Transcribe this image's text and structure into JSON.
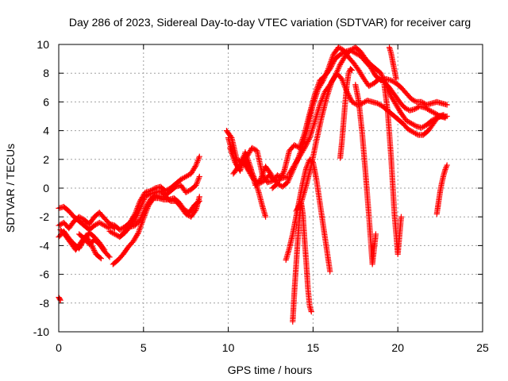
{
  "chart_data": {
    "type": "scatter",
    "title": "Day 286 of 2023, Sidereal Day-to-day VTEC variation (SDTVAR) for receiver carg",
    "xlabel": "GPS time / hours",
    "ylabel": "SDTVAR / TECUs",
    "xlim": [
      0,
      25
    ],
    "ylim": [
      -10,
      10
    ],
    "xticks": [
      0,
      5,
      10,
      15,
      20,
      25
    ],
    "yticks": [
      -10,
      -8,
      -6,
      -4,
      -2,
      0,
      2,
      4,
      6,
      8,
      10
    ],
    "grid": true,
    "marker": "+",
    "color": "#ff0000",
    "series": [
      {
        "name": "outlier",
        "x": [
          0.0,
          0.1
        ],
        "y": [
          -7.6,
          -7.8
        ]
      },
      {
        "name": "s1",
        "x": [
          0.0,
          0.3,
          0.6,
          0.9,
          1.2,
          1.5,
          1.8,
          2.1,
          2.4,
          2.7,
          3.0
        ],
        "y": [
          -1.4,
          -1.3,
          -1.6,
          -2.0,
          -2.3,
          -2.6,
          -2.9,
          -2.6,
          -2.4,
          -2.6,
          -2.8
        ]
      },
      {
        "name": "s2",
        "x": [
          0.0,
          0.3,
          0.6,
          0.9,
          1.2,
          1.5,
          1.8,
          2.1,
          2.4,
          2.7,
          3.0,
          3.3
        ],
        "y": [
          -2.6,
          -2.4,
          -2.8,
          -2.3,
          -2.0,
          -2.2,
          -2.5,
          -2.0,
          -1.7,
          -2.1,
          -2.5,
          -2.8
        ]
      },
      {
        "name": "s3",
        "x": [
          0.0,
          0.3,
          0.6,
          0.9,
          1.2,
          1.5,
          1.8,
          2.1,
          2.4,
          2.7
        ],
        "y": [
          -3.4,
          -3.0,
          -3.5,
          -3.9,
          -4.2,
          -3.6,
          -3.1,
          -3.4,
          -3.8,
          -4.3
        ]
      },
      {
        "name": "s4",
        "x": [
          0.1,
          0.4,
          0.7,
          1.0,
          1.3,
          1.6,
          1.9,
          2.2,
          2.5
        ],
        "y": [
          -2.9,
          -3.3,
          -3.8,
          -4.3,
          -3.8,
          -3.3,
          -3.9,
          -4.6,
          -4.9
        ]
      },
      {
        "name": "s5",
        "x": [
          1.2,
          1.5,
          1.8,
          2.1,
          2.4,
          2.7,
          3.0
        ],
        "y": [
          -3.2,
          -3.5,
          -3.9,
          -3.6,
          -3.9,
          -4.4,
          -4.8
        ]
      },
      {
        "name": "s6",
        "x": [
          3.0,
          3.3,
          3.6,
          3.9,
          4.2,
          4.5,
          4.8,
          5.1,
          5.4,
          5.7,
          6.0,
          6.3,
          6.6,
          6.9,
          7.2,
          7.5,
          7.8,
          8.1,
          8.3
        ],
        "y": [
          -2.5,
          -2.6,
          -2.9,
          -2.7,
          -2.4,
          -1.8,
          -0.9,
          -0.3,
          -0.2,
          0.0,
          0.1,
          -0.2,
          0.0,
          0.3,
          0.6,
          0.8,
          1.0,
          1.6,
          2.2
        ]
      },
      {
        "name": "s7",
        "x": [
          3.0,
          3.3,
          3.6,
          3.9,
          4.2,
          4.5,
          4.8,
          5.1,
          5.4,
          5.7,
          6.0,
          6.3,
          6.6,
          6.9,
          7.2,
          7.5,
          7.8,
          8.1,
          8.3
        ],
        "y": [
          -3.0,
          -3.2,
          -3.4,
          -3.0,
          -2.6,
          -2.2,
          -1.4,
          -0.6,
          -0.4,
          -0.3,
          -0.2,
          -0.5,
          -0.2,
          0.1,
          0.2,
          -0.3,
          -0.1,
          0.2,
          0.8
        ]
      },
      {
        "name": "s8",
        "x": [
          3.2,
          3.5,
          3.8,
          4.1,
          4.4,
          4.7,
          5.0,
          5.3,
          5.6,
          5.9,
          6.2,
          6.5,
          6.8,
          7.1,
          7.4,
          7.7,
          8.0,
          8.3
        ],
        "y": [
          -5.3,
          -5.0,
          -4.6,
          -4.1,
          -3.7,
          -3.1,
          -2.1,
          -1.2,
          -0.7,
          -0.7,
          -0.8,
          -0.8,
          -0.7,
          -1.0,
          -1.5,
          -1.7,
          -1.2,
          -0.9
        ]
      },
      {
        "name": "s9",
        "x": [
          3.6,
          3.9,
          4.2,
          4.5,
          4.8,
          5.1,
          5.4,
          5.7,
          6.0,
          6.3,
          6.6,
          6.9,
          7.2,
          7.5,
          7.8,
          8.1,
          8.3
        ],
        "y": [
          -3.4,
          -3.1,
          -2.7,
          -2.6,
          -2.2,
          -1.4,
          -0.8,
          -0.5,
          -0.6,
          -0.6,
          -0.9,
          -0.9,
          -1.3,
          -1.8,
          -2.0,
          -1.5,
          -0.6
        ]
      },
      {
        "name": "s10",
        "x": [
          9.9,
          10.2,
          10.5,
          10.8,
          11.1,
          11.4,
          11.7,
          12.0,
          12.3,
          12.6,
          12.9,
          13.2,
          13.5
        ],
        "y": [
          4.0,
          3.5,
          2.0,
          1.8,
          2.2,
          2.8,
          2.6,
          1.0,
          0.4,
          0.5,
          0.9,
          0.7,
          0.8
        ]
      },
      {
        "name": "s11",
        "x": [
          10.0,
          10.3,
          10.6,
          10.9,
          11.2,
          11.5,
          11.8,
          12.0,
          12.2
        ],
        "y": [
          3.5,
          2.2,
          1.4,
          2.2,
          1.6,
          0.8,
          -0.3,
          -1.2,
          -2.0
        ]
      },
      {
        "name": "s12",
        "x": [
          10.1,
          10.4,
          10.7,
          11.0,
          11.3,
          11.6,
          11.9,
          12.2,
          12.5,
          12.8
        ],
        "y": [
          2.8,
          1.8,
          1.2,
          2.5,
          1.5,
          0.2,
          0.6,
          1.5,
          1.0,
          0.4
        ]
      },
      {
        "name": "s13",
        "x": [
          10.3,
          10.6,
          10.9,
          11.2,
          11.5,
          11.8,
          12.1,
          12.4,
          12.7,
          13.0,
          13.3,
          13.6,
          13.9,
          14.2,
          14.5,
          14.8,
          15.1,
          15.4,
          15.7,
          16.0,
          16.3,
          16.6,
          16.9,
          17.2,
          17.5,
          17.8,
          18.1,
          18.4,
          18.7,
          19.0,
          19.3,
          19.6,
          19.9,
          20.2,
          20.5,
          20.8,
          21.1,
          21.4,
          21.7,
          22.0,
          22.3,
          22.6,
          22.9
        ],
        "y": [
          1.0,
          1.5,
          1.8,
          1.2,
          0.6,
          0.3,
          0.5,
          0.9,
          0.6,
          0.5,
          1.2,
          2.6,
          3.0,
          2.8,
          3.8,
          5.2,
          6.5,
          7.5,
          7.8,
          8.3,
          9.0,
          9.3,
          9.5,
          9.6,
          9.4,
          9.2,
          8.8,
          8.4,
          7.8,
          7.5,
          7.6,
          7.5,
          7.3,
          7.0,
          6.6,
          6.2,
          6.0,
          6.0,
          5.8,
          5.9,
          6.0,
          5.9,
          5.8
        ]
      },
      {
        "name": "s14",
        "x": [
          12.6,
          12.9,
          13.2,
          13.5,
          13.8,
          14.1,
          14.4,
          14.7,
          15.0,
          15.3,
          15.6,
          15.9,
          16.2,
          16.5,
          16.8,
          17.1,
          17.4,
          17.7,
          18.0,
          18.3,
          18.6,
          18.9,
          19.2,
          19.5,
          19.8,
          20.1,
          20.4,
          20.7,
          21.0,
          21.3,
          21.6,
          21.9,
          22.2,
          22.5,
          22.8
        ],
        "y": [
          0.0,
          0.3,
          0.1,
          0.4,
          1.2,
          2.0,
          3.0,
          4.3,
          5.8,
          6.9,
          7.5,
          8.3,
          9.3,
          9.8,
          9.6,
          9.1,
          8.7,
          8.2,
          7.6,
          7.1,
          7.3,
          7.6,
          7.4,
          7.0,
          6.5,
          6.0,
          5.6,
          5.4,
          5.5,
          5.7,
          5.6,
          5.4,
          5.2,
          5.0,
          4.9
        ]
      },
      {
        "name": "s15",
        "x": [
          13.6,
          13.9,
          14.2,
          14.5,
          14.8,
          15.1,
          15.4,
          15.7,
          16.0,
          16.3,
          16.6,
          16.9,
          17.2,
          17.5,
          17.8,
          18.1,
          18.4,
          18.7,
          19.0,
          19.3,
          19.6,
          19.9,
          20.2,
          20.5,
          20.8,
          21.1,
          21.4,
          21.7,
          22.0,
          22.3,
          22.6,
          22.9
        ],
        "y": [
          1.0,
          1.6,
          2.2,
          2.8,
          3.5,
          4.6,
          5.8,
          6.7,
          7.2,
          7.8,
          8.6,
          9.2,
          9.6,
          9.8,
          9.5,
          9.0,
          8.6,
          8.3,
          8.0,
          7.2,
          6.4,
          5.8,
          5.2,
          4.7,
          4.5,
          4.3,
          4.2,
          4.4,
          4.7,
          4.9,
          5.0,
          5.0
        ]
      },
      {
        "name": "s16",
        "x": [
          14.0,
          14.3,
          14.6,
          14.9,
          15.2,
          15.5,
          15.8,
          16.1,
          16.4,
          16.7,
          17.0,
          17.3,
          17.6,
          17.9,
          18.2,
          18.5,
          18.8,
          19.1,
          19.4,
          19.7,
          20.0,
          20.3,
          20.6,
          20.9,
          21.2,
          21.5,
          21.8,
          22.1,
          22.4,
          22.7
        ],
        "y": [
          -1.6,
          -1.0,
          0.2,
          1.6,
          3.3,
          4.9,
          6.3,
          7.4,
          8.0,
          7.6,
          6.7,
          6.0,
          5.8,
          5.9,
          6.1,
          6.0,
          5.9,
          5.7,
          5.4,
          5.1,
          4.8,
          4.5,
          4.1,
          3.9,
          3.7,
          3.7,
          4.0,
          4.5,
          5.0,
          5.1
        ]
      },
      {
        "name": "dip1",
        "x": [
          13.4,
          13.6,
          13.8,
          14.0,
          14.2,
          14.4,
          14.6,
          14.8,
          15.0,
          15.2,
          15.4,
          15.6,
          15.8,
          16.0
        ],
        "y": [
          -5.0,
          -4.2,
          -3.2,
          -2.0,
          -0.8,
          0.4,
          1.4,
          2.0,
          1.8,
          0.6,
          -1.0,
          -2.6,
          -4.2,
          -5.8
        ]
      },
      {
        "name": "dip2",
        "x": [
          13.8,
          13.9,
          14.0,
          14.1,
          14.2,
          14.3,
          14.4,
          14.5,
          14.6,
          14.7,
          14.8,
          14.9
        ],
        "y": [
          -9.3,
          -7.2,
          -5.4,
          -3.6,
          -2.0,
          -1.0,
          -1.8,
          -3.6,
          -5.2,
          -7.0,
          -8.2,
          -8.6
        ]
      },
      {
        "name": "dip3",
        "x": [
          16.6,
          16.7,
          16.8,
          16.9,
          17.0,
          17.1,
          17.2,
          17.3
        ],
        "y": [
          2.1,
          3.2,
          4.6,
          6.0,
          7.2,
          8.0,
          8.3,
          8.2
        ]
      },
      {
        "name": "dip4",
        "x": [
          17.5,
          17.7,
          17.9,
          18.1,
          18.3,
          18.5,
          18.7
        ],
        "y": [
          7.2,
          6.0,
          3.8,
          1.0,
          -2.0,
          -5.3,
          -3.2
        ]
      },
      {
        "name": "dip5",
        "x": [
          19.2,
          19.4,
          19.6,
          19.8,
          20.0,
          20.2
        ],
        "y": [
          7.2,
          5.4,
          2.2,
          -1.8,
          -4.6,
          -2.0
        ]
      },
      {
        "name": "dip6",
        "x": [
          19.5,
          19.6,
          19.7,
          19.8,
          19.9
        ],
        "y": [
          9.8,
          9.4,
          8.8,
          8.2,
          7.6
        ]
      },
      {
        "name": "tail",
        "x": [
          22.3,
          22.4,
          22.5,
          22.6,
          22.7,
          22.8,
          22.9
        ],
        "y": [
          -1.8,
          -1.0,
          -0.2,
          0.4,
          0.9,
          1.3,
          1.6
        ]
      }
    ]
  }
}
